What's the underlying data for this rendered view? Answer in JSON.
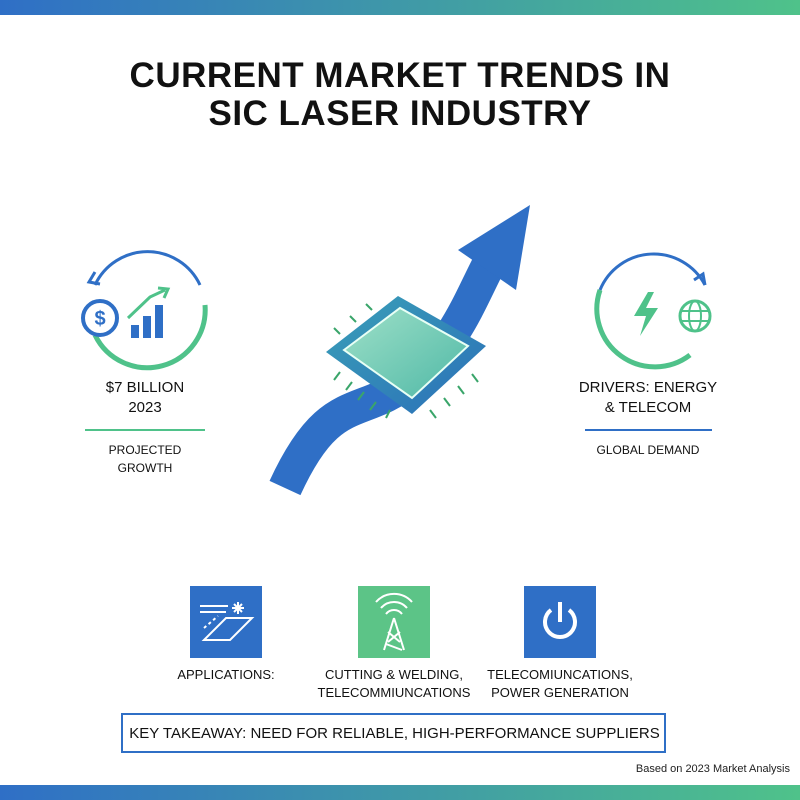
{
  "header": {
    "title_lines": [
      "CURRENT MARKET TRENDS IN",
      "SIC LASER INDUSTRY"
    ]
  },
  "left_stat": {
    "value_lines": [
      "$7 BILLION",
      "2023"
    ],
    "caption_lines": [
      "PROJECTED",
      "GROWTH"
    ]
  },
  "right_stat": {
    "value_lines": [
      "DRIVERS: ENERGY",
      "& TELECOM"
    ],
    "caption_lines": [
      "GLOBAL DEMAND"
    ]
  },
  "cards": [
    {
      "lines": [
        "APPLICATIONS:"
      ]
    },
    {
      "lines": [
        "CUTTING & WELDING,",
        "TELECOMMIUNCATIONS"
      ]
    },
    {
      "lines": [
        "TELECOMIUNCATIONS,",
        "POWER GENERATION"
      ]
    }
  ],
  "takeaway": "KEY TAKEAWAY: NEED FOR RELIABLE, HIGH-PERFORMANCE SUPPLIERS",
  "footer": "Based on 2023 Market Analysis"
}
